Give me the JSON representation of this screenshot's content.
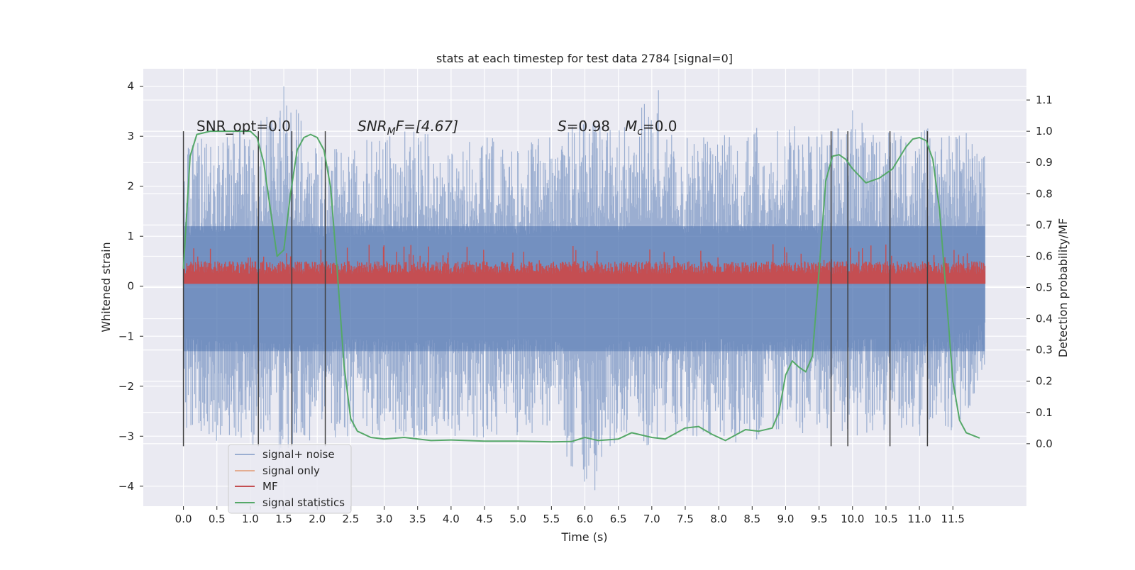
{
  "chart_data": {
    "type": "line",
    "title": "stats at each timestep for test data 2784 [signal=0]",
    "xlabel": "Time (s)",
    "ylabel": "Whitened strain",
    "ylabel_right": "Detection probability/MF",
    "xlim": [
      -0.6,
      12.6
    ],
    "ylim": [
      -4.4,
      4.35
    ],
    "ylim_right": [
      -0.2,
      1.2
    ],
    "x_ticks": [
      0.0,
      0.5,
      1.0,
      1.5,
      2.0,
      2.5,
      3.0,
      3.5,
      4.0,
      4.5,
      5.0,
      5.5,
      6.0,
      6.5,
      7.0,
      7.5,
      8.0,
      8.5,
      9.0,
      9.5,
      10.0,
      10.5,
      11.0,
      11.5
    ],
    "x_tick_labels": [
      "0.0",
      "0.5",
      "1.0",
      "1.5",
      "2.0",
      "2.5",
      "3.0",
      "3.5",
      "4.0",
      "4.5",
      "5.0",
      "5.5",
      "6.0",
      "6.5",
      "7.0",
      "7.5",
      "8.0",
      "8.5",
      "9.0",
      "9.5",
      "10.0",
      "10.5",
      "11.0",
      "11.5"
    ],
    "y_ticks": [
      -4,
      -3,
      -2,
      -1,
      0,
      1,
      2,
      3,
      4
    ],
    "y_tick_labels": [
      "−4",
      "−3",
      "−2",
      "−1",
      "0",
      "1",
      "2",
      "3",
      "4"
    ],
    "y_ticks_right": [
      0.0,
      0.1,
      0.2,
      0.3,
      0.4,
      0.5,
      0.6,
      0.7,
      0.8,
      0.9,
      1.0,
      1.1
    ],
    "y_tick_labels_right": [
      "0.0",
      "0.1",
      "0.2",
      "0.3",
      "0.4",
      "0.5",
      "0.6",
      "0.7",
      "0.8",
      "0.9",
      "1.0",
      "1.1"
    ],
    "grid": true,
    "legend_position": "bottom-left",
    "annotations": {
      "snr_opt": "SNR_opt=0.0",
      "snr_mf_base": "SNR",
      "snr_mf_sub": "M",
      "snr_mf_rest": "F=[4.67]",
      "s_stat": "S",
      "s_value": "=0.98",
      "mc_base": "M",
      "mc_sub": "c",
      "mc_value": "=0.0"
    },
    "series": [
      {
        "name": "signal+ noise",
        "color": "#4c72b0",
        "axis": "left",
        "x_range": [
          0.0,
          11.98
        ],
        "envelope": {
          "x": [
            0.0,
            0.5,
            1.0,
            1.5,
            2.0,
            2.5,
            3.0,
            3.5,
            4.0,
            4.5,
            5.0,
            5.5,
            6.0,
            6.5,
            7.0,
            7.5,
            8.0,
            8.5,
            9.0,
            9.5,
            10.0,
            10.5,
            11.0,
            11.5,
            11.98
          ],
          "upper": [
            2.8,
            3.1,
            3.2,
            4.0,
            2.8,
            2.9,
            3.0,
            3.2,
            2.8,
            3.0,
            2.9,
            3.0,
            3.4,
            3.1,
            3.9,
            3.0,
            3.0,
            3.2,
            3.3,
            3.0,
            3.5,
            3.3,
            3.2,
            3.3,
            2.8
          ],
          "lower": [
            -2.9,
            -3.1,
            -3.2,
            -3.3,
            -3.2,
            -3.0,
            -3.0,
            -3.1,
            -3.0,
            -3.1,
            -3.0,
            -3.0,
            -4.1,
            -3.1,
            -3.2,
            -3.1,
            -3.0,
            -3.3,
            -3.0,
            -3.0,
            -3.0,
            -3.0,
            -3.0,
            -2.9,
            -2.0
          ]
        },
        "highlights": [
          {
            "x": 1.5,
            "y": 4.0
          },
          {
            "x": 7.1,
            "y": 3.92
          },
          {
            "x": 6.15,
            "y": -4.08
          },
          {
            "x": 10.0,
            "y": 3.52
          },
          {
            "x": 6.0,
            "y": 3.32
          }
        ]
      },
      {
        "name": "signal only",
        "color": "#dd8452",
        "axis": "left",
        "x": [],
        "values": []
      },
      {
        "name": "MF",
        "color": "#c44e52",
        "axis": "left",
        "x_range": [
          0.0,
          11.98
        ],
        "base": 0.05,
        "typical_top": 0.5,
        "max_top": 0.85
      },
      {
        "name": "signal statistics",
        "color": "#55a868",
        "axis": "right",
        "x": [
          0.0,
          0.1,
          0.2,
          0.4,
          0.6,
          0.8,
          1.0,
          1.1,
          1.2,
          1.3,
          1.4,
          1.5,
          1.6,
          1.7,
          1.8,
          1.9,
          2.0,
          2.1,
          2.2,
          2.3,
          2.4,
          2.5,
          2.6,
          2.8,
          3.0,
          3.3,
          3.7,
          4.0,
          4.5,
          5.0,
          5.5,
          5.8,
          6.0,
          6.1,
          6.2,
          6.5,
          6.7,
          7.0,
          7.2,
          7.5,
          7.7,
          7.9,
          8.1,
          8.4,
          8.6,
          8.8,
          8.9,
          9.0,
          9.1,
          9.2,
          9.3,
          9.4,
          9.5,
          9.6,
          9.7,
          9.8,
          9.9,
          10.0,
          10.2,
          10.4,
          10.6,
          10.8,
          10.9,
          11.0,
          11.1,
          11.2,
          11.3,
          11.4,
          11.5,
          11.6,
          11.7,
          11.9
        ],
        "values": [
          0.56,
          0.92,
          0.99,
          1.0,
          1.0,
          1.0,
          1.0,
          0.98,
          0.9,
          0.75,
          0.6,
          0.62,
          0.8,
          0.94,
          0.98,
          0.99,
          0.98,
          0.94,
          0.82,
          0.55,
          0.25,
          0.08,
          0.04,
          0.02,
          0.015,
          0.02,
          0.01,
          0.012,
          0.008,
          0.008,
          0.006,
          0.007,
          0.02,
          0.015,
          0.01,
          0.015,
          0.035,
          0.02,
          0.015,
          0.05,
          0.055,
          0.03,
          0.01,
          0.045,
          0.04,
          0.05,
          0.1,
          0.22,
          0.265,
          0.245,
          0.23,
          0.28,
          0.55,
          0.84,
          0.92,
          0.925,
          0.91,
          0.88,
          0.835,
          0.85,
          0.88,
          0.95,
          0.975,
          0.98,
          0.97,
          0.91,
          0.75,
          0.48,
          0.2,
          0.075,
          0.035,
          0.018
        ]
      }
    ],
    "vertical_lines": {
      "color": "#404040",
      "x": [
        0.0,
        1.12,
        1.62,
        2.12,
        9.68,
        9.93,
        10.56,
        11.12
      ],
      "y_top": 3.1,
      "y_bottom": -3.2
    }
  }
}
